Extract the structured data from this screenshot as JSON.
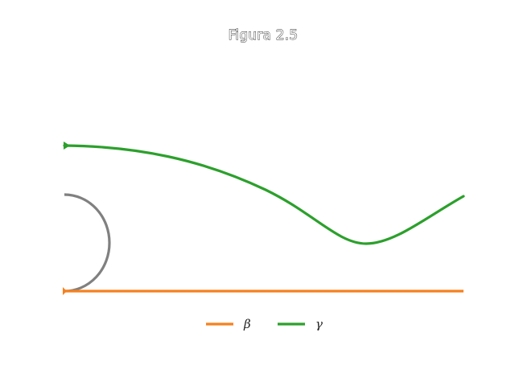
{
  "figure": {
    "title": "Figura 2.5"
  },
  "colors": {
    "beta": "#f5811e",
    "gamma": "#2ca02c",
    "semicircle": "#808080"
  },
  "legend": {
    "beta_label": "β",
    "gamma_label": "γ"
  }
}
